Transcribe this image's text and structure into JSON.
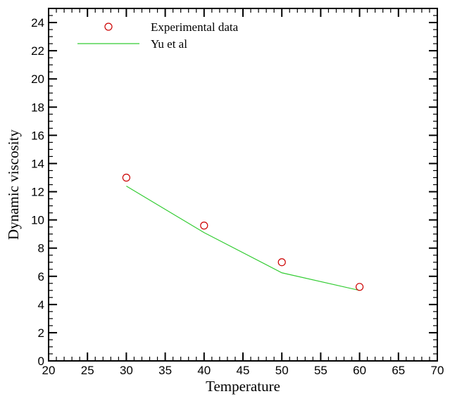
{
  "chart_data": {
    "type": "line",
    "title": "",
    "xlabel": "Temperature",
    "ylabel": "Dynamic viscosity",
    "xlim": [
      20,
      70
    ],
    "ylim": [
      0,
      25
    ],
    "x_major_ticks": [
      20,
      25,
      30,
      35,
      40,
      45,
      50,
      55,
      60,
      65,
      70
    ],
    "y_major_ticks": [
      0,
      2,
      4,
      6,
      8,
      10,
      12,
      14,
      16,
      18,
      20,
      22,
      24
    ],
    "x_minor_step": 1,
    "y_minor_step": 0.5,
    "grid": false,
    "legend_position": "top-left",
    "series": [
      {
        "name": "Experimental data",
        "kind": "scatter",
        "marker": "open-circle",
        "color": "#cc0000",
        "x": [
          30,
          40,
          50,
          60
        ],
        "y": [
          13.0,
          9.6,
          7.0,
          5.25
        ]
      },
      {
        "name": "Yu et al",
        "kind": "line",
        "color": "#33cc33",
        "x": [
          30,
          40,
          50,
          60
        ],
        "y": [
          12.4,
          9.1,
          6.25,
          5.0
        ]
      }
    ]
  }
}
